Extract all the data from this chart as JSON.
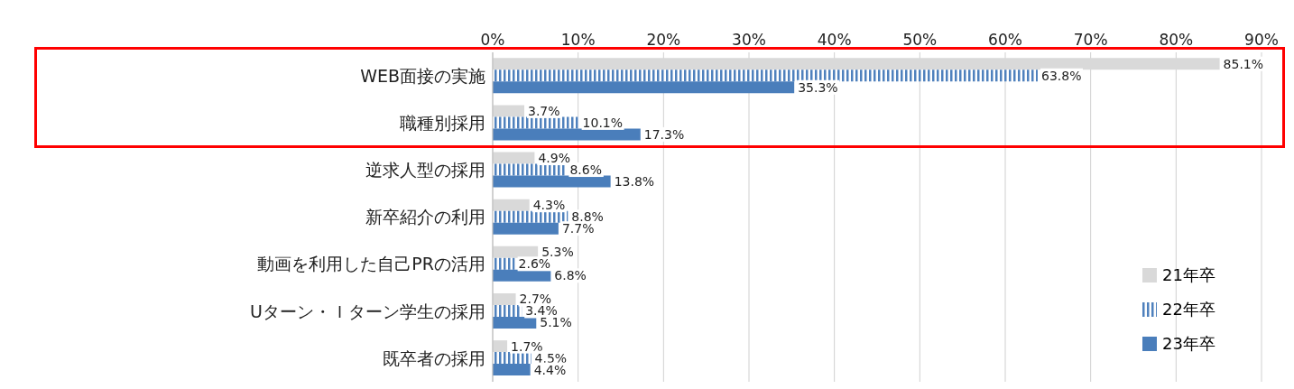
{
  "chart_data": {
    "type": "bar",
    "orientation": "horizontal",
    "categories": [
      "WEB面接の実施",
      "職種別採用",
      "逆求人型の採用",
      "新卒紹介の利用",
      "動画を利用した自己PRの活用",
      "Uターン・Ｉターン学生の採用",
      "既卒者の採用"
    ],
    "series": [
      {
        "name": "21年卒",
        "color": "#d9d9d9",
        "values": [
          85.1,
          3.7,
          4.9,
          4.3,
          5.3,
          2.7,
          1.7
        ],
        "value_labels": [
          "85.1%",
          "3.7%",
          "4.9%",
          "4.3%",
          "5.3%",
          "2.7%",
          "1.7%"
        ]
      },
      {
        "name": "22年卒",
        "color": "#4f81bd",
        "values": [
          63.8,
          10.1,
          8.6,
          8.8,
          2.6,
          3.4,
          4.5
        ],
        "value_labels": [
          "63.8%",
          "10.1%",
          "8.6%",
          "8.8%",
          "2.6%",
          "3.4%",
          "4.5%"
        ]
      },
      {
        "name": "23年卒",
        "color": "#4a7ebb",
        "values": [
          35.3,
          17.3,
          13.8,
          7.7,
          6.8,
          5.1,
          4.4
        ],
        "value_labels": [
          "35.3%",
          "17.3%",
          "13.8%",
          "7.7%",
          "6.8%",
          "5.1%",
          "4.4%"
        ]
      }
    ],
    "xlim": [
      0,
      90
    ],
    "xticks": [
      {
        "value": 0,
        "label": "0%"
      },
      {
        "value": 10,
        "label": "10%"
      },
      {
        "value": 20,
        "label": "20%"
      },
      {
        "value": 30,
        "label": "30%"
      },
      {
        "value": 40,
        "label": "40%"
      },
      {
        "value": 50,
        "label": "50%"
      },
      {
        "value": 60,
        "label": "60%"
      },
      {
        "value": 70,
        "label": "70%"
      },
      {
        "value": 80,
        "label": "80%"
      },
      {
        "value": 90,
        "label": "90%"
      }
    ],
    "grid": "x",
    "legend": "bottom right"
  }
}
